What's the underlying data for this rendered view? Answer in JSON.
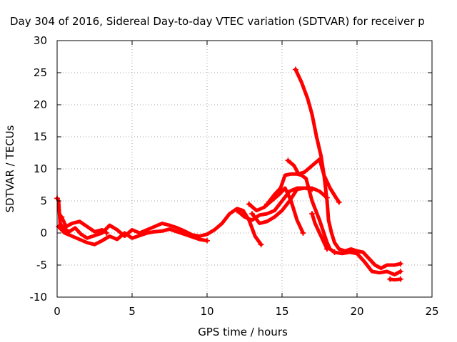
{
  "chart_data": {
    "type": "scatter",
    "title": "Day 304 of 2016, Sidereal Day-to-day VTEC variation (SDTVAR) for receiver p",
    "xlabel": "GPS time / hours",
    "ylabel": "SDTVAR / TECUs",
    "xlim": [
      0,
      25
    ],
    "ylim": [
      -10,
      30
    ],
    "xticks": [
      "0",
      "5",
      "10",
      "15",
      "20",
      "25"
    ],
    "yticks": [
      "-10",
      "-5",
      "0",
      "5",
      "10",
      "15",
      "20",
      "25",
      "30"
    ],
    "grid": true,
    "marker": "+",
    "color": "#ff0000",
    "series": [
      {
        "points": [
          [
            0.0,
            5.4
          ],
          [
            0.1,
            5.0
          ],
          [
            0.2,
            1.5
          ],
          [
            0.4,
            0.8
          ],
          [
            0.8,
            0.2
          ],
          [
            1.2,
            0.8
          ],
          [
            1.6,
            -0.2
          ],
          [
            2.0,
            -0.8
          ],
          [
            2.5,
            -0.4
          ],
          [
            3.0,
            0.0
          ],
          [
            3.5,
            1.2
          ],
          [
            4.0,
            0.5
          ],
          [
            4.5,
            -0.5
          ],
          [
            5.0,
            0.5
          ],
          [
            5.5,
            0.0
          ],
          [
            6.0,
            0.5
          ],
          [
            6.5,
            1.0
          ],
          [
            7.0,
            1.5
          ],
          [
            7.5,
            1.2
          ],
          [
            8.0,
            0.8
          ],
          [
            8.5,
            0.3
          ],
          [
            9.0,
            -0.3
          ],
          [
            9.5,
            -0.5
          ],
          [
            10.0,
            -0.2
          ],
          [
            10.5,
            0.5
          ],
          [
            11.0,
            1.5
          ],
          [
            11.5,
            3.0
          ],
          [
            12.0,
            3.8
          ],
          [
            12.4,
            3.5
          ],
          [
            12.8,
            2.0
          ],
          [
            13.2,
            -0.5
          ],
          [
            13.6,
            -1.8
          ]
        ]
      },
      {
        "points": [
          [
            0.1,
            1.0
          ],
          [
            0.5,
            0.0
          ],
          [
            1.0,
            -0.5
          ],
          [
            1.5,
            -1.0
          ],
          [
            2.0,
            -1.5
          ],
          [
            2.5,
            -1.8
          ],
          [
            3.0,
            -1.2
          ],
          [
            3.5,
            -0.5
          ],
          [
            4.0,
            -1.0
          ],
          [
            4.5,
            0.0
          ],
          [
            5.0,
            -0.8
          ],
          [
            5.5,
            -0.4
          ],
          [
            6.0,
            0.0
          ],
          [
            6.5,
            0.2
          ],
          [
            7.0,
            0.3
          ],
          [
            7.5,
            0.6
          ],
          [
            8.0,
            0.2
          ],
          [
            8.5,
            -0.2
          ],
          [
            9.0,
            -0.6
          ],
          [
            9.5,
            -1.0
          ],
          [
            10.0,
            -1.2
          ]
        ]
      },
      {
        "points": [
          [
            0.3,
            2.5
          ],
          [
            0.6,
            1.0
          ],
          [
            1.0,
            1.5
          ],
          [
            1.5,
            1.8
          ],
          [
            2.0,
            1.0
          ],
          [
            2.5,
            0.2
          ],
          [
            3.0,
            0.5
          ],
          [
            3.3,
            0.0
          ]
        ]
      },
      {
        "points": [
          [
            12.0,
            3.5
          ],
          [
            12.5,
            2.5
          ],
          [
            13.0,
            2.0
          ],
          [
            13.5,
            2.8
          ],
          [
            14.0,
            3.0
          ],
          [
            14.5,
            3.5
          ],
          [
            15.0,
            5.0
          ],
          [
            15.5,
            6.5
          ],
          [
            16.0,
            7.0
          ],
          [
            16.5,
            7.0
          ],
          [
            17.0,
            7.0
          ],
          [
            17.5,
            6.5
          ],
          [
            18.0,
            5.5
          ]
        ]
      },
      {
        "points": [
          [
            12.8,
            4.5
          ],
          [
            13.3,
            3.5
          ],
          [
            13.8,
            4.0
          ],
          [
            14.3,
            5.0
          ],
          [
            14.8,
            6.0
          ],
          [
            15.2,
            7.0
          ],
          [
            15.6,
            5.0
          ],
          [
            16.0,
            2.0
          ],
          [
            16.4,
            0.0
          ]
        ]
      },
      {
        "points": [
          [
            13.0,
            3.0
          ],
          [
            13.5,
            1.5
          ],
          [
            14.0,
            1.8
          ],
          [
            14.5,
            2.5
          ],
          [
            15.0,
            3.5
          ],
          [
            15.5,
            5.0
          ],
          [
            16.0,
            6.8
          ],
          [
            16.5,
            7.0
          ],
          [
            17.0,
            6.8
          ]
        ]
      },
      {
        "points": [
          [
            14.0,
            4.5
          ],
          [
            14.5,
            6.0
          ],
          [
            14.9,
            7.0
          ],
          [
            15.2,
            9.0
          ],
          [
            15.6,
            9.2
          ],
          [
            16.0,
            9.2
          ],
          [
            16.3,
            9.0
          ],
          [
            16.6,
            8.5
          ],
          [
            17.0,
            5.0
          ],
          [
            17.5,
            2.0
          ],
          [
            18.0,
            -1.5
          ],
          [
            18.2,
            -2.5
          ],
          [
            18.5,
            -3.0
          ]
        ]
      },
      {
        "points": [
          [
            15.4,
            11.3
          ],
          [
            15.8,
            10.5
          ],
          [
            16.1,
            9.2
          ],
          [
            16.5,
            9.5
          ],
          [
            17.0,
            10.5
          ],
          [
            17.5,
            11.5
          ],
          [
            17.8,
            9.0
          ],
          [
            18.2,
            7.0
          ],
          [
            18.6,
            5.5
          ],
          [
            18.8,
            4.8
          ]
        ]
      },
      {
        "points": [
          [
            15.9,
            25.5
          ],
          [
            16.3,
            23.5
          ],
          [
            16.7,
            21.0
          ],
          [
            17.0,
            18.5
          ],
          [
            17.3,
            15.0
          ],
          [
            17.6,
            12.0
          ],
          [
            17.8,
            9.0
          ],
          [
            18.0,
            5.0
          ],
          [
            18.1,
            2.0
          ],
          [
            18.3,
            0.0
          ],
          [
            18.5,
            -1.5
          ],
          [
            18.8,
            -2.5
          ],
          [
            19.2,
            -2.8
          ],
          [
            19.6,
            -2.5
          ],
          [
            20.0,
            -2.8
          ],
          [
            20.4,
            -3.0
          ],
          [
            20.8,
            -4.0
          ],
          [
            21.2,
            -5.0
          ],
          [
            21.6,
            -5.5
          ],
          [
            22.0,
            -5.0
          ],
          [
            22.5,
            -5.0
          ],
          [
            22.9,
            -4.8
          ]
        ]
      },
      {
        "points": [
          [
            18.5,
            -3.0
          ],
          [
            19.0,
            -3.2
          ],
          [
            19.5,
            -3.0
          ],
          [
            20.0,
            -3.2
          ],
          [
            20.5,
            -4.5
          ],
          [
            21.0,
            -6.0
          ],
          [
            21.5,
            -6.2
          ],
          [
            22.0,
            -6.0
          ],
          [
            22.5,
            -6.5
          ],
          [
            22.9,
            -6.0
          ]
        ]
      },
      {
        "points": [
          [
            17.0,
            3.0
          ],
          [
            17.2,
            1.5
          ],
          [
            17.5,
            0.0
          ],
          [
            17.8,
            -1.5
          ],
          [
            18.0,
            -2.5
          ]
        ]
      },
      {
        "points": [
          [
            22.2,
            -7.2
          ],
          [
            22.5,
            -7.3
          ],
          [
            22.9,
            -7.2
          ]
        ]
      }
    ]
  }
}
